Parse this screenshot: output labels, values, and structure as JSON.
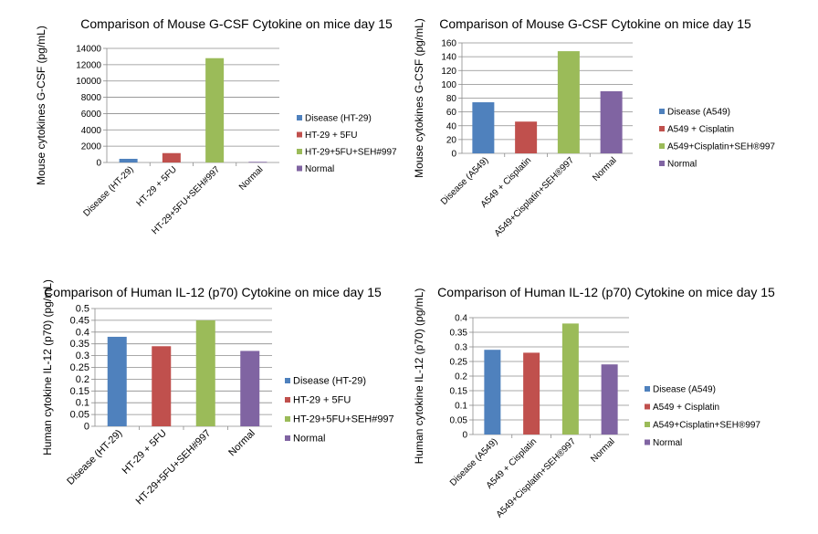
{
  "colors": [
    "#4f81bd",
    "#c0504d",
    "#9bbb59",
    "#8064a2"
  ],
  "chart_data": [
    {
      "type": "bar",
      "title": "Comparison of Mouse G-CSF Cytokine on mice day 15",
      "ylabel": "Mouse cytokines G-CSF  (pg/mL)",
      "xlabel": "",
      "categories": [
        "Disease (HT-29)",
        "HT-29 + 5FU",
        "HT-29+5FU+SEH#997",
        "Normal"
      ],
      "values": [
        450,
        1150,
        12800,
        80
      ],
      "ylim": [
        0,
        14000
      ],
      "yticks": [
        "0",
        "2000",
        "4000",
        "6000",
        "8000",
        "10000",
        "12000",
        "14000"
      ],
      "legend": [
        "Disease (HT-29)",
        "HT-29 + 5FU",
        "HT-29+5FU+SEH#997",
        "Normal"
      ],
      "legend_position": "right",
      "grid": true
    },
    {
      "type": "bar",
      "title": "Comparison of Mouse G-CSF Cytokine on mice day 15",
      "ylabel": "Mouse cytokines G-CSF  (pg/mL)",
      "xlabel": "",
      "categories": [
        "Disease (A549)",
        "A549 + Cisplatin",
        "A549+Cisplatin+SEH®997",
        "Normal"
      ],
      "values": [
        74,
        46,
        148,
        90
      ],
      "ylim": [
        0,
        160
      ],
      "yticks": [
        "0",
        "20",
        "40",
        "60",
        "80",
        "100",
        "120",
        "140",
        "160"
      ],
      "legend": [
        "Disease (A549)",
        "A549 + Cisplatin",
        "A549+Cisplatin+SEH®997",
        "Normal"
      ],
      "legend_position": "right",
      "grid": true
    },
    {
      "type": "bar",
      "title": "Comparison of Human IL-12 (p70) Cytokine on mice day 15",
      "ylabel": "Human cytokine IL-12 (p70)  (pg/mL)",
      "xlabel": "",
      "categories": [
        "Disease (HT-29)",
        "HT-29 + 5FU",
        "HT-29+5FU+SEH#997",
        "Normal"
      ],
      "values": [
        0.38,
        0.34,
        0.45,
        0.32
      ],
      "ylim": [
        0,
        0.5
      ],
      "yticks": [
        "0",
        "0.05",
        "0.1",
        "0.15",
        "0.2",
        "0.25",
        "0.3",
        "0.35",
        "0.4",
        "0.45",
        "0.5"
      ],
      "legend": [
        "Disease (HT-29)",
        "HT-29 + 5FU",
        "HT-29+5FU+SEH#997",
        "Normal"
      ],
      "legend_position": "right",
      "grid": true
    },
    {
      "type": "bar",
      "title": "Comparison of Human IL-12 (p70) Cytokine on mice day 15",
      "ylabel": "Human cytokine IL-12 (p70)  (pg/mL)",
      "xlabel": "",
      "categories": [
        "Disease (A549)",
        "A549 + Cisplatin",
        "A549+Cisplatin+SEH®997",
        "Normal"
      ],
      "values": [
        0.29,
        0.28,
        0.38,
        0.24
      ],
      "ylim": [
        0,
        0.4
      ],
      "yticks": [
        "0",
        "0.05",
        "0.1",
        "0.15",
        "0.2",
        "0.25",
        "0.3",
        "0.35",
        "0.4"
      ],
      "legend": [
        "Disease (A549)",
        "A549 + Cisplatin",
        "A549+Cisplatin+SEH®997",
        "Normal"
      ],
      "legend_position": "right",
      "grid": true
    }
  ]
}
